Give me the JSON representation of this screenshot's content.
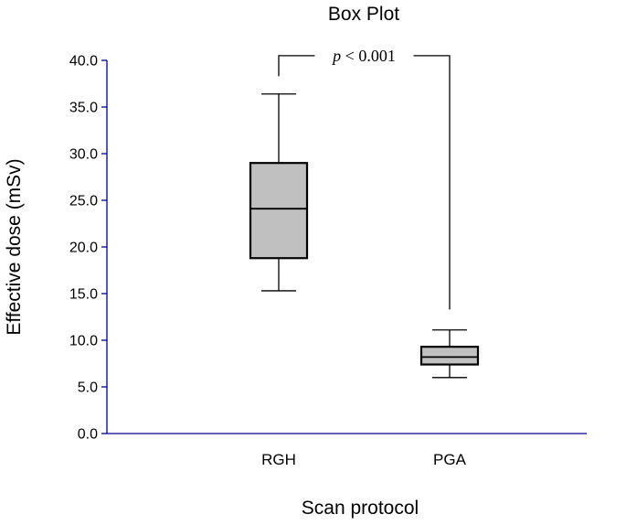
{
  "chart_data": {
    "type": "box",
    "title": "Box Plot",
    "xlabel": "Scan protocol",
    "ylabel": "Effective dose (mSv)",
    "ylim": [
      0,
      40
    ],
    "ytick_values": [
      0,
      5,
      10,
      15,
      20,
      25,
      30,
      35,
      40
    ],
    "ytick_labels": [
      "0.0",
      "5.0",
      "10.0",
      "15.0",
      "20.0",
      "25.0",
      "30.0",
      "35.0",
      "40.0"
    ],
    "categories": [
      "RGH",
      "PGA"
    ],
    "boxes": [
      {
        "name": "RGH",
        "whisker_low": 15.3,
        "q1": 18.8,
        "median": 24.1,
        "q3": 29.0,
        "whisker_high": 36.4
      },
      {
        "name": "PGA",
        "whisker_low": 6.0,
        "q1": 7.4,
        "median": 8.2,
        "q3": 9.3,
        "whisker_high": 11.1
      }
    ],
    "significance": {
      "symbol": "p",
      "relation": "< 0.001",
      "bracket_y": 40.5,
      "left_drop_to": 38.3,
      "right_drop_to": 13.3
    },
    "colors": {
      "box_fill": "#c0c0c0",
      "axis": "#00008b",
      "ink": "#000000"
    }
  }
}
